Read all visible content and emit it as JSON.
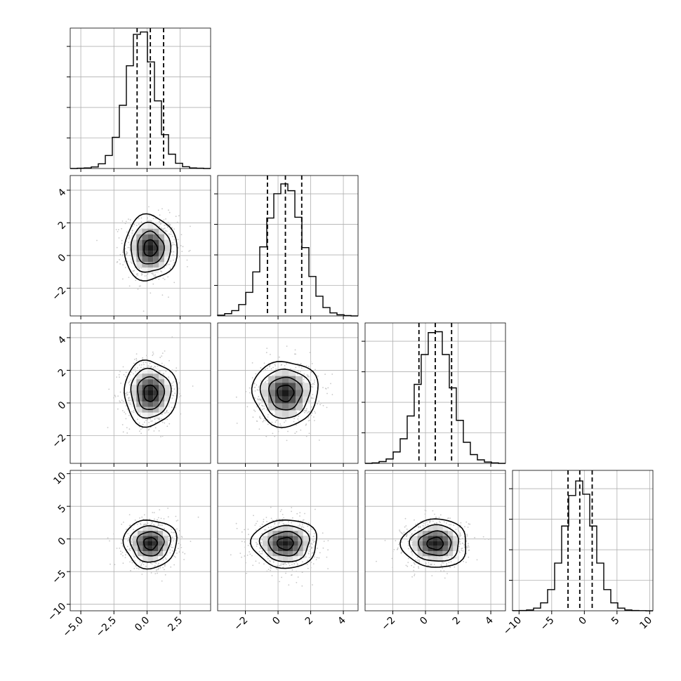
{
  "chart_data": {
    "type": "corner",
    "grid": true,
    "colors": {
      "line": "#000000",
      "grid": "#b0b0b0",
      "scatter": "#c8c8c8"
    },
    "quantile_lines": "dashed",
    "variables": [
      {
        "range": [
          -5.8,
          4.8
        ],
        "ticks": [
          -5.0,
          -2.5,
          0.0,
          2.5
        ],
        "tick_labels": [
          "−5.0",
          "−2.5",
          "0.0",
          "2.5"
        ],
        "quantiles": [
          -0.75,
          0.25,
          1.25
        ],
        "mean": 0.25,
        "sd": 1.0
      },
      {
        "range": [
          -3.7,
          4.9
        ],
        "ticks": [
          -2,
          0,
          2,
          4
        ],
        "tick_labels": [
          "−2",
          "0",
          "2",
          "4"
        ],
        "quantiles": [
          -0.65,
          0.45,
          1.45
        ],
        "mean": 0.45,
        "sd": 1.0
      },
      {
        "range": [
          -3.7,
          4.9
        ],
        "ticks": [
          -2,
          0,
          2,
          4
        ],
        "tick_labels": [
          "−2",
          "0",
          "2",
          "4"
        ],
        "quantiles": [
          -0.4,
          0.6,
          1.6
        ],
        "mean": 0.6,
        "sd": 1.0
      },
      {
        "range": [
          -11.0,
          10.5
        ],
        "ticks": [
          -10,
          -5,
          0,
          5,
          10
        ],
        "tick_labels": [
          "−10",
          "−5",
          "0",
          "5",
          "10"
        ],
        "quantiles": [
          -2.5,
          -0.7,
          1.2
        ],
        "mean": -0.7,
        "sd": 1.85
      }
    ],
    "histograms": [
      {
        "variable": 0,
        "bins": [
          -5.8,
          -5.27,
          -4.74,
          -4.21,
          -3.68,
          -3.15,
          -2.62,
          -2.09,
          -1.56,
          -1.03,
          -0.5,
          0.03,
          0.56,
          1.09,
          1.62,
          2.15,
          2.68,
          3.21,
          3.74,
          4.27,
          4.8
        ],
        "counts": [
          0,
          1,
          2,
          6,
          18,
          50,
          120,
          243,
          395,
          516,
          525,
          410,
          260,
          130,
          55,
          20,
          7,
          2,
          1,
          0
        ],
        "ymax": 540
      },
      {
        "variable": 1,
        "bins": [
          -3.7,
          -3.27,
          -2.84,
          -2.41,
          -1.98,
          -1.55,
          -1.12,
          -0.69,
          -0.26,
          0.17,
          0.6,
          1.03,
          1.46,
          1.89,
          2.32,
          2.75,
          3.18,
          3.61,
          4.04,
          4.47,
          4.9
        ],
        "counts": [
          2,
          6,
          14,
          30,
          62,
          116,
          182,
          258,
          322,
          348,
          330,
          260,
          180,
          104,
          52,
          22,
          8,
          3,
          1,
          0
        ],
        "ymax": 370
      },
      {
        "variable": 2,
        "bins": [
          -3.7,
          -3.27,
          -2.84,
          -2.41,
          -1.98,
          -1.55,
          -1.12,
          -0.69,
          -0.26,
          0.17,
          0.6,
          1.03,
          1.46,
          1.89,
          2.32,
          2.75,
          3.18,
          3.61,
          4.04,
          4.47,
          4.9
        ],
        "counts": [
          0,
          1,
          4,
          10,
          26,
          56,
          108,
          180,
          248,
          298,
          300,
          248,
          172,
          98,
          48,
          20,
          8,
          3,
          1,
          0
        ],
        "ymax": 320
      },
      {
        "variable": 3,
        "bins": [
          -11.0,
          -9.925,
          -8.85,
          -7.775,
          -6.7,
          -5.625,
          -4.55,
          -3.475,
          -2.4,
          -1.325,
          -0.25,
          0.825,
          1.9,
          2.975,
          4.05,
          5.125,
          6.2,
          7.275,
          8.35,
          9.425,
          10.5
        ],
        "counts": [
          1,
          2,
          6,
          20,
          60,
          160,
          360,
          640,
          870,
          980,
          880,
          640,
          360,
          160,
          60,
          20,
          6,
          2,
          1,
          0
        ],
        "ymax": 1060
      }
    ],
    "pairs": [
      {
        "x": 0,
        "y": 1,
        "center": [
          0.25,
          0.45
        ]
      },
      {
        "x": 0,
        "y": 2,
        "center": [
          0.25,
          0.6
        ]
      },
      {
        "x": 1,
        "y": 2,
        "center": [
          0.45,
          0.6
        ]
      },
      {
        "x": 0,
        "y": 3,
        "center": [
          0.25,
          -0.7
        ]
      },
      {
        "x": 1,
        "y": 3,
        "center": [
          0.45,
          -0.7
        ]
      },
      {
        "x": 2,
        "y": 3,
        "center": [
          0.6,
          -0.7
        ]
      }
    ],
    "contour_levels_sigma": [
      0.5,
      1.0,
      1.5,
      2.0
    ]
  }
}
